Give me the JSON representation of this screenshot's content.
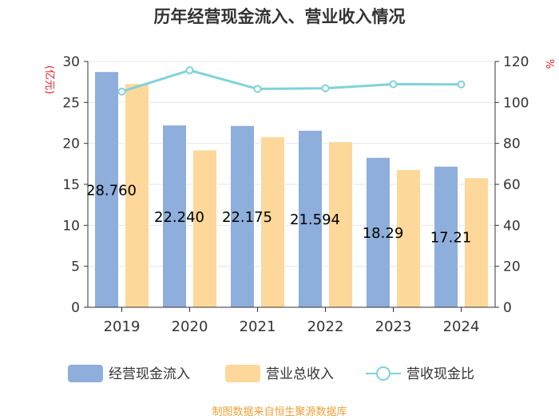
{
  "chart_data": {
    "type": "bar",
    "title": "历年经营现金流入、营业收入情况",
    "categories": [
      "2019",
      "2020",
      "2021",
      "2022",
      "2023",
      "2024"
    ],
    "series": [
      {
        "name": "经营现金流入",
        "axis": "left",
        "color": "#8eaedb",
        "values": [
          28.76,
          22.24,
          22.175,
          21.594,
          18.29,
          17.21
        ]
      },
      {
        "name": "营业总收入",
        "axis": "left",
        "color": "#fdd89a",
        "values": [
          27.3,
          19.2,
          20.8,
          20.2,
          16.8,
          15.8
        ]
      },
      {
        "name": "营收现金比",
        "axis": "right",
        "type": "line",
        "color": "#7fd3da",
        "values": [
          105.3,
          115.7,
          106.6,
          106.9,
          108.9,
          108.8
        ]
      }
    ],
    "data_labels": [
      "28.760",
      "22.240",
      "22.175",
      "21.594",
      "18.29",
      "17.21"
    ],
    "y_left": {
      "label": "(亿元)",
      "min": 0,
      "max": 30,
      "ticks": [
        0,
        5,
        10,
        15,
        20,
        25,
        30
      ]
    },
    "y_right": {
      "label": "%",
      "min": 0,
      "max": 120,
      "ticks": [
        0,
        20,
        40,
        60,
        80,
        100,
        120
      ]
    },
    "legend": [
      "经营现金流入",
      "营业总收入",
      "营收现金比"
    ],
    "legend_position": "bottom",
    "grid": true,
    "source": "制图数据来自恒生聚源数据库",
    "colors": {
      "axis_unit": "#e02020",
      "source": "#e8a135",
      "grid": "#e6e6e6",
      "axis": "#333333"
    }
  }
}
